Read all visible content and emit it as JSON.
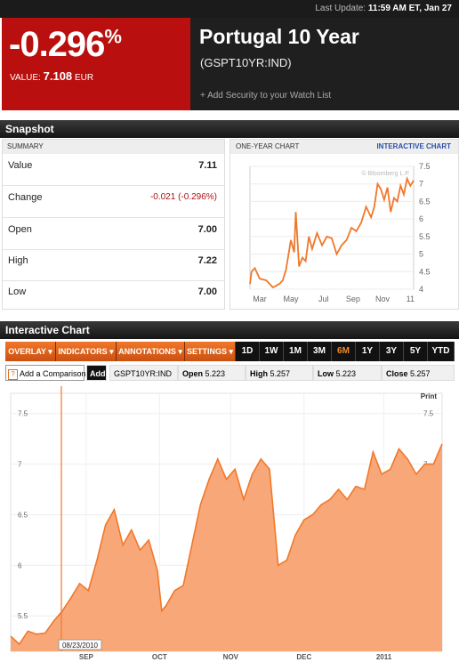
{
  "topbar": {
    "last_update_label": "Last Update:",
    "last_update_value": "11:59 AM ET, Jan 27"
  },
  "quote": {
    "change_pct": "-0.296",
    "pct_sign": "%",
    "value_label": "VALUE:",
    "value": "7.108",
    "currency": "EUR",
    "name": "Portugal 10 Year",
    "symbol": "(GSPT10YR:IND)",
    "watchlist_label": "+ Add Security to your Watch List",
    "colors": {
      "negative_bg": "#b90f0f",
      "header_bg": "#1f1f1f"
    }
  },
  "snapshot": {
    "title": "Snapshot",
    "summary_label": "SUMMARY",
    "rows": [
      {
        "label": "Value",
        "value": "7.11"
      },
      {
        "label": "Change",
        "value": "-0.021 (-0.296%)"
      },
      {
        "label": "Open",
        "value": "7.00"
      },
      {
        "label": "High",
        "value": "7.22"
      },
      {
        "label": "Low",
        "value": "7.00"
      }
    ],
    "one_year_label": "ONE-YEAR CHART",
    "interactive_link": "INTERACTIVE CHART",
    "watermark": "© Bloomberg L.P."
  },
  "interactive": {
    "title": "Interactive Chart",
    "menus": [
      "OVERLAY ▾",
      "INDICATORS ▾",
      "ANNOTATIONS ▾",
      "SETTINGS ▾"
    ],
    "ranges": [
      "1D",
      "1W",
      "1M",
      "3M",
      "6M",
      "1Y",
      "3Y",
      "5Y",
      "YTD"
    ],
    "selected_range": "6M",
    "compare_icon": "?",
    "compare_label": "Add a Comparison",
    "add_button": "Add",
    "symbol": "GSPT10YR:IND",
    "open_label": "Open",
    "open_value": "5.223",
    "high_label": "High",
    "high_value": "5.257",
    "low_label": "Low",
    "low_value": "5.223",
    "close_label": "Close",
    "close_value": "5.257",
    "print_label": "Print",
    "marker_date": "08/23/2010",
    "accent_color": "#f0782a",
    "fill_color": "#f8a878"
  },
  "chart_data": [
    {
      "type": "line",
      "title": "ONE-YEAR CHART",
      "x_ticks": [
        "Mar",
        "May",
        "Jul",
        "Sep",
        "Nov",
        "11"
      ],
      "ylim": [
        4,
        7.5
      ],
      "y_ticks": [
        "4",
        "4.5",
        "5",
        "5.5",
        "6",
        "6.5",
        "7",
        "7.5"
      ],
      "x": [
        0,
        0.01,
        0.03,
        0.06,
        0.1,
        0.14,
        0.18,
        0.2,
        0.22,
        0.25,
        0.27,
        0.28,
        0.3,
        0.32,
        0.34,
        0.36,
        0.38,
        0.41,
        0.44,
        0.47,
        0.5,
        0.53,
        0.56,
        0.59,
        0.62,
        0.65,
        0.68,
        0.71,
        0.74,
        0.76,
        0.78,
        0.8,
        0.82,
        0.84,
        0.86,
        0.88,
        0.9,
        0.92,
        0.94,
        0.96,
        0.98,
        1.0
      ],
      "values": [
        4.15,
        4.5,
        4.6,
        4.3,
        4.25,
        4.05,
        4.15,
        4.25,
        4.55,
        5.4,
        5.05,
        6.2,
        4.65,
        4.9,
        4.8,
        5.5,
        5.15,
        5.6,
        5.25,
        5.5,
        5.45,
        5.0,
        5.25,
        5.4,
        5.75,
        5.65,
        5.9,
        6.35,
        6.05,
        6.35,
        7.0,
        6.85,
        6.55,
        6.9,
        6.2,
        6.6,
        6.5,
        6.95,
        6.7,
        7.15,
        6.95,
        7.1
      ],
      "grid": true
    },
    {
      "type": "area",
      "title": "",
      "x_ticks": [
        "SEP",
        "OCT",
        "NOV",
        "DEC",
        "2011"
      ],
      "y_ticks": [
        "5.5",
        "6",
        "6.5",
        "7",
        "7.5"
      ],
      "ylim": [
        5.15,
        7.7
      ],
      "x": [
        0,
        0.02,
        0.04,
        0.06,
        0.08,
        0.1,
        0.12,
        0.14,
        0.16,
        0.18,
        0.2,
        0.22,
        0.24,
        0.26,
        0.28,
        0.3,
        0.32,
        0.34,
        0.35,
        0.36,
        0.38,
        0.4,
        0.42,
        0.44,
        0.46,
        0.48,
        0.5,
        0.52,
        0.54,
        0.56,
        0.58,
        0.6,
        0.62,
        0.64,
        0.66,
        0.68,
        0.7,
        0.72,
        0.74,
        0.76,
        0.78,
        0.8,
        0.82,
        0.84,
        0.86,
        0.88,
        0.9,
        0.92,
        0.94,
        0.96,
        0.98,
        1.0
      ],
      "values": [
        5.3,
        5.22,
        5.35,
        5.32,
        5.33,
        5.45,
        5.55,
        5.68,
        5.82,
        5.75,
        6.05,
        6.4,
        6.55,
        6.2,
        6.35,
        6.15,
        6.25,
        5.95,
        5.55,
        5.6,
        5.75,
        5.8,
        6.2,
        6.6,
        6.85,
        7.05,
        6.85,
        6.95,
        6.65,
        6.9,
        7.05,
        6.95,
        6.0,
        6.05,
        6.3,
        6.45,
        6.5,
        6.6,
        6.65,
        6.75,
        6.65,
        6.78,
        6.75,
        7.12,
        6.9,
        6.95,
        7.15,
        7.05,
        6.9,
        7.0,
        7.0,
        7.2
      ],
      "grid": true
    }
  ]
}
